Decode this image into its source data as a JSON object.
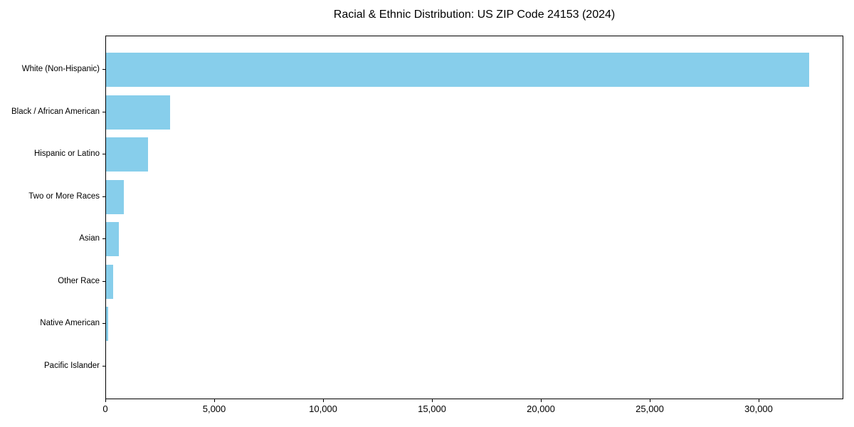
{
  "chart_data": {
    "type": "bar",
    "orientation": "horizontal",
    "title": "Racial & Ethnic Distribution: US ZIP Code 24153 (2024)",
    "categories": [
      "White (Non-Hispanic)",
      "Black / African American",
      "Hispanic or Latino",
      "Two or More Races",
      "Asian",
      "Other Race",
      "Native American",
      "Pacific Islander"
    ],
    "values": [
      32300,
      2940,
      1930,
      810,
      580,
      340,
      95,
      0
    ],
    "xlabel": "",
    "ylabel": "",
    "xlim": [
      0,
      33900
    ],
    "xticks": [
      0,
      5000,
      10000,
      15000,
      20000,
      25000,
      30000
    ],
    "xtick_labels": [
      "0",
      "5,000",
      "10,000",
      "15,000",
      "20,000",
      "25,000",
      "30,000"
    ],
    "bar_color": "#87CEEB",
    "axis_color": "#000000",
    "text_color": "#000000",
    "background_color": "#FFFFFF",
    "grid": false,
    "legend": null
  }
}
